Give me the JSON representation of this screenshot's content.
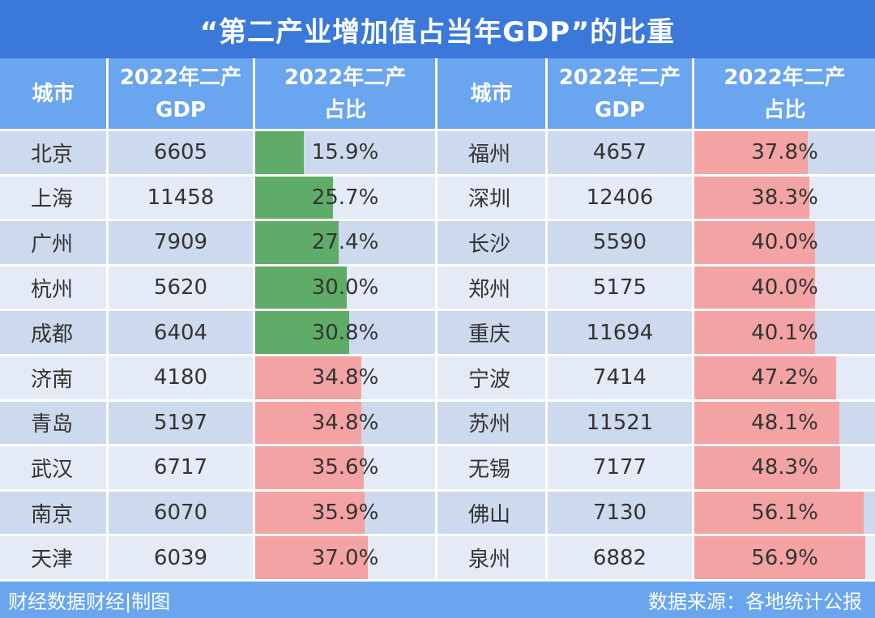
{
  "title": "“第二产业增加值占当年GDP”的比重",
  "headers": {
    "city": "城市",
    "gdp_line1": "2022年二产",
    "gdp_line2": "GDP",
    "pct_line1": "2022年二产",
    "pct_line2": "占比"
  },
  "footer": {
    "left": "财经数据财经|制图",
    "right": "数据来源：各地统计公报"
  },
  "colors": {
    "green_bar": "#5fac68",
    "red_bar": "#f3a3a3",
    "header": "#6aa5ef",
    "title": "#3a79da"
  },
  "chart_data": {
    "type": "table",
    "title": "“第二产业增加值占当年GDP”的比重",
    "columns": [
      "城市",
      "2022年二产GDP",
      "2022年二产占比"
    ],
    "left": [
      {
        "city": "北京",
        "gdp": "6605",
        "pct": "15.9%",
        "value": 15.9,
        "color": "green"
      },
      {
        "city": "上海",
        "gdp": "11458",
        "pct": "25.7%",
        "value": 25.7,
        "color": "green"
      },
      {
        "city": "广州",
        "gdp": "7909",
        "pct": "27.4%",
        "value": 27.4,
        "color": "green"
      },
      {
        "city": "杭州",
        "gdp": "5620",
        "pct": "30.0%",
        "value": 30.0,
        "color": "green"
      },
      {
        "city": "成都",
        "gdp": "6404",
        "pct": "30.8%",
        "value": 30.8,
        "color": "green"
      },
      {
        "city": "济南",
        "gdp": "4180",
        "pct": "34.8%",
        "value": 34.8,
        "color": "red"
      },
      {
        "city": "青岛",
        "gdp": "5197",
        "pct": "34.8%",
        "value": 34.8,
        "color": "red"
      },
      {
        "city": "武汉",
        "gdp": "6717",
        "pct": "35.6%",
        "value": 35.6,
        "color": "red"
      },
      {
        "city": "南京",
        "gdp": "6070",
        "pct": "35.9%",
        "value": 35.9,
        "color": "red"
      },
      {
        "city": "天津",
        "gdp": "6039",
        "pct": "37.0%",
        "value": 37.0,
        "color": "red"
      }
    ],
    "right": [
      {
        "city": "福州",
        "gdp": "4657",
        "pct": "37.8%",
        "value": 37.8,
        "color": "red"
      },
      {
        "city": "深圳",
        "gdp": "12406",
        "pct": "38.3%",
        "value": 38.3,
        "color": "red"
      },
      {
        "city": "长沙",
        "gdp": "5590",
        "pct": "40.0%",
        "value": 40.0,
        "color": "red"
      },
      {
        "city": "郑州",
        "gdp": "5175",
        "pct": "40.0%",
        "value": 40.0,
        "color": "red"
      },
      {
        "city": "重庆",
        "gdp": "11694",
        "pct": "40.1%",
        "value": 40.1,
        "color": "red"
      },
      {
        "city": "宁波",
        "gdp": "7414",
        "pct": "47.2%",
        "value": 47.2,
        "color": "red"
      },
      {
        "city": "苏州",
        "gdp": "11521",
        "pct": "48.1%",
        "value": 48.1,
        "color": "red"
      },
      {
        "city": "无锡",
        "gdp": "7177",
        "pct": "48.3%",
        "value": 48.3,
        "color": "red"
      },
      {
        "city": "佛山",
        "gdp": "7130",
        "pct": "56.1%",
        "value": 56.1,
        "color": "red"
      },
      {
        "city": "泉州",
        "gdp": "6882",
        "pct": "56.9%",
        "value": 56.9,
        "color": "red"
      }
    ]
  }
}
